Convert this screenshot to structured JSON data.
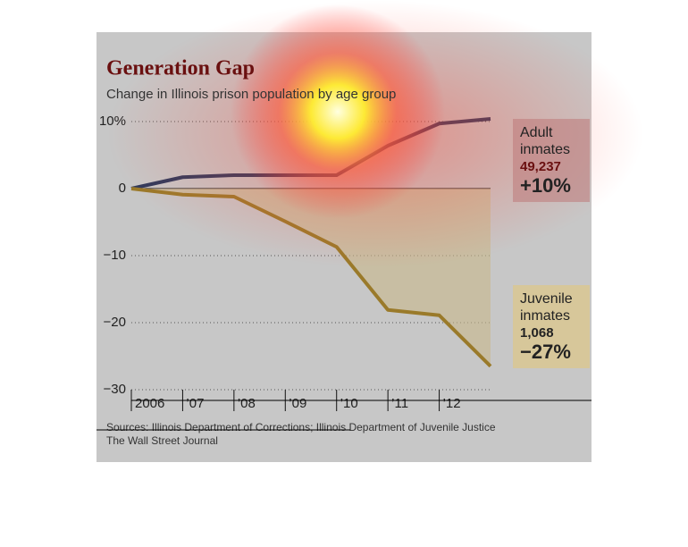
{
  "chart_data": {
    "type": "line",
    "title": "Generation Gap",
    "subtitle": "Change in Illinois prison population by age group",
    "x": [
      2006,
      2007,
      2008,
      2009,
      2010,
      2011,
      2012,
      2013
    ],
    "xlim": [
      2006,
      2013
    ],
    "xticks": [
      {
        "value": 2006,
        "label": "2006"
      },
      {
        "value": 2007,
        "label": "’07"
      },
      {
        "value": 2008,
        "label": "’08"
      },
      {
        "value": 2009,
        "label": "’09"
      },
      {
        "value": 2010,
        "label": "’10"
      },
      {
        "value": 2011,
        "label": "’11"
      },
      {
        "value": 2012,
        "label": "’12"
      }
    ],
    "ylim": [
      -30,
      10
    ],
    "yticks": [
      {
        "value": 10,
        "label": "10%"
      },
      0,
      {
        "value": -10,
        "label": "−10"
      },
      {
        "value": -20,
        "label": "−20"
      },
      {
        "value": -30,
        "label": "−30"
      }
    ],
    "grid": true,
    "series": [
      {
        "name": "Adult inmates",
        "color": "#2f3a5c",
        "values": [
          0,
          1.7,
          2.0,
          2.0,
          2.0,
          6.4,
          9.7,
          10.4
        ],
        "count": "49,237",
        "change": "+10%"
      },
      {
        "name": "Juvenile inmates",
        "color": "#9a7a2a",
        "values": [
          0,
          -0.9,
          -1.2,
          -4.9,
          -8.7,
          -18.1,
          -18.9,
          -26.5
        ],
        "count": "1,068",
        "change": "−27%",
        "fill": "#c8b78a"
      }
    ],
    "source": "Sources: Illinois Department of Corrections; Illinois Department of Juvenile Justice",
    "credit": "The Wall Street Journal"
  }
}
